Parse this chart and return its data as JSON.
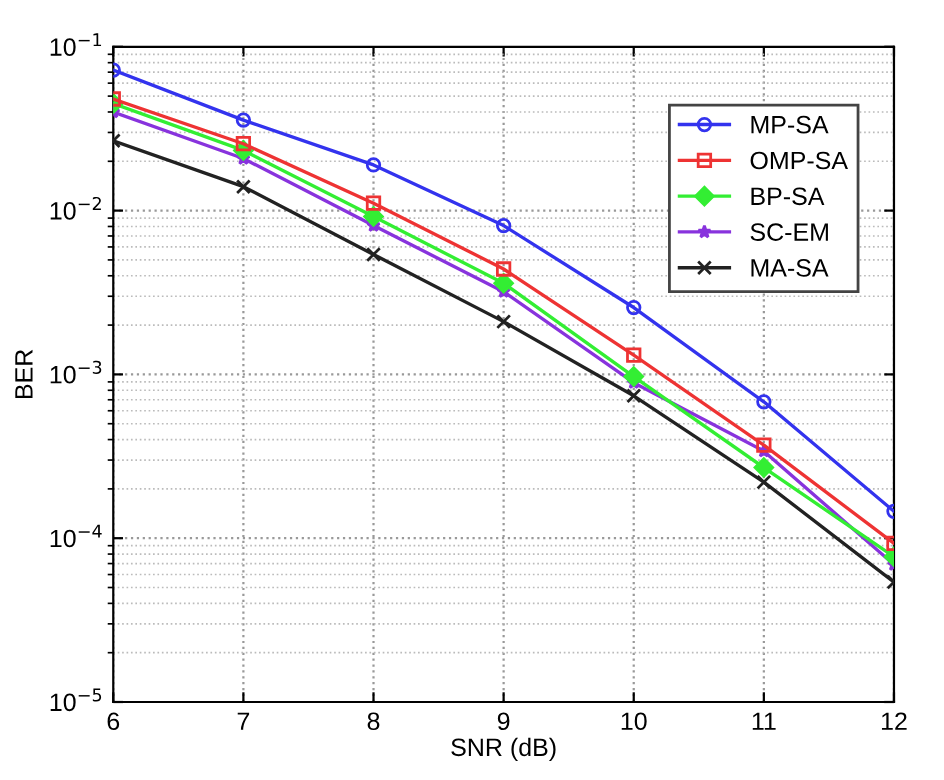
{
  "chart_data": {
    "type": "line",
    "xlabel": "SNR (dB)",
    "ylabel": "BER",
    "log": "y",
    "x": [
      6,
      7,
      8,
      9,
      10,
      11,
      12
    ],
    "xlim": [
      6,
      12
    ],
    "xticks": [
      6,
      7,
      8,
      9,
      10,
      11,
      12
    ],
    "ylim": [
      1e-05,
      0.1
    ],
    "yticks": [
      {
        "value": 1e-05,
        "label": "10$^{−5}$"
      },
      {
        "value": 0.0001,
        "label": "10$^{−4}$"
      },
      {
        "value": 0.001,
        "label": "10$^{−3}$"
      },
      {
        "value": 0.01,
        "label": "10$^{−2}$"
      },
      {
        "value": 0.1,
        "label": "10$^{−1}$"
      }
    ],
    "grid": true,
    "legend": "top right",
    "line_style": "solid",
    "series": [
      {
        "name": "MP-SA",
        "color": "#3333ee",
        "marker": "circle",
        "values": [
          0.072,
          0.0357,
          0.019,
          0.0081,
          0.00256,
          0.00068,
          0.000146
        ]
      },
      {
        "name": "OMP-SA",
        "color": "#ee3333",
        "marker": "square",
        "values": [
          0.048,
          0.0256,
          0.0111,
          0.0044,
          0.00131,
          0.00037,
          9.3e-05
        ]
      },
      {
        "name": "BP-SA",
        "color": "#33ee33",
        "marker": "diamond",
        "values": [
          0.045,
          0.0233,
          0.0092,
          0.0036,
          0.00097,
          0.00027,
          7.7e-05
        ]
      },
      {
        "name": "SC-EM",
        "color": "#8833dd",
        "marker": "star",
        "values": [
          0.04,
          0.0208,
          0.0081,
          0.0032,
          0.00089,
          0.00034,
          6.9e-05
        ]
      },
      {
        "name": "MA-SA",
        "color": "#222222",
        "marker": "cross",
        "values": [
          0.0267,
          0.014,
          0.0054,
          0.0021,
          0.00074,
          0.00022,
          5.4e-05
        ]
      }
    ]
  }
}
